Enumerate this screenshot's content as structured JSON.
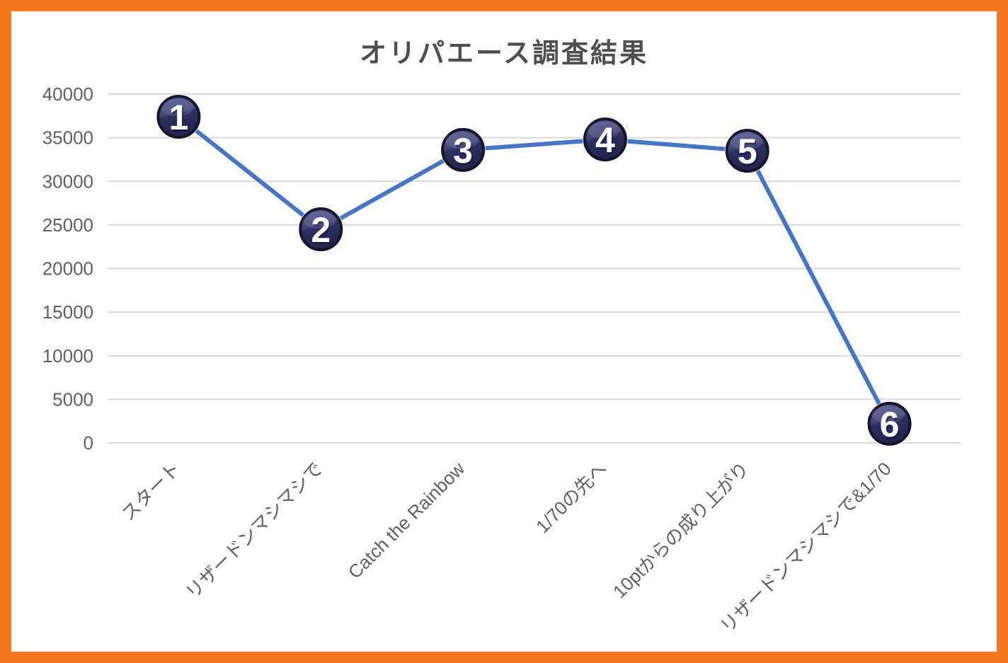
{
  "frame": {
    "border_color": "#F5741D",
    "background": "#FFFFFF"
  },
  "chart_data": {
    "type": "line",
    "title": "オリパエース調査結果",
    "categories": [
      "スタート",
      "リザードンマシマシで",
      "Catch the Rainbow",
      "1/70の先へ",
      "10ptからの成り上がり",
      "リザードンマシマシで&1/70"
    ],
    "series": [
      {
        "name": "オリパエース調査結果",
        "values": [
          37400,
          24500,
          33600,
          34800,
          33500,
          2200
        ]
      }
    ],
    "point_labels": [
      "1",
      "2",
      "3",
      "4",
      "5",
      "6"
    ],
    "ylim": [
      0,
      40000
    ],
    "ytick_step": 5000,
    "ytick_labels": [
      "0",
      "5000",
      "10000",
      "15000",
      "20000",
      "25000",
      "30000",
      "35000",
      "40000"
    ],
    "grid": true,
    "legend": "none",
    "x_label_rotation_deg": 45,
    "styles": {
      "line_color": "#4575C6",
      "line_width": 6,
      "grid_color": "#D9D9D9",
      "axis_text_color": "#616161",
      "title_color": "#4E4E4E",
      "marker_gradient": [
        "#575C93",
        "#41467A",
        "#2B2E61",
        "#23264E"
      ],
      "marker_outline": "#15152B",
      "marker_number_color": "#FFFFFF",
      "marker_number_shadow": "rgba(15,15,40,0.45)"
    }
  }
}
